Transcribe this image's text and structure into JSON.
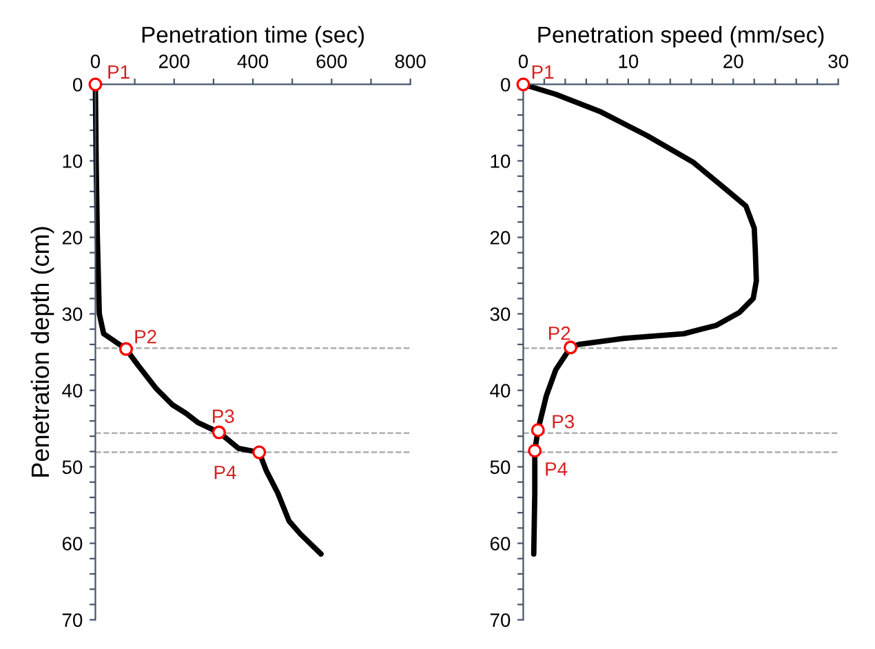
{
  "chart_data": [
    {
      "type": "line",
      "xlabel": "Penetration time (sec)",
      "ylabel": "Penetration depth (cm)",
      "xlim": [
        0,
        800
      ],
      "ylim": [
        70,
        0
      ],
      "xticks": [
        0,
        {
          "value": 100,
          "label": null
        },
        200,
        {
          "value": 300,
          "label": null
        },
        400,
        {
          "value": 500,
          "label": null
        },
        600,
        {
          "value": 700,
          "label": null
        },
        800
      ],
      "yticks": [
        0,
        {
          "value": 2,
          "label": null
        },
        {
          "value": 4,
          "label": null
        },
        {
          "value": 6,
          "label": null
        },
        {
          "value": 8,
          "label": null
        },
        10,
        {
          "value": 12,
          "label": null
        },
        {
          "value": 14,
          "label": null
        },
        {
          "value": 16,
          "label": null
        },
        {
          "value": 18,
          "label": null
        },
        20,
        {
          "value": 22,
          "label": null
        },
        {
          "value": 24,
          "label": null
        },
        {
          "value": 26,
          "label": null
        },
        {
          "value": 28,
          "label": null
        },
        30,
        {
          "value": 32,
          "label": null
        },
        {
          "value": 34,
          "label": null
        },
        {
          "value": 36,
          "label": null
        },
        {
          "value": 38,
          "label": null
        },
        40,
        {
          "value": 42,
          "label": null
        },
        {
          "value": 44,
          "label": null
        },
        {
          "value": 46,
          "label": null
        },
        {
          "value": 48,
          "label": null
        },
        50,
        {
          "value": 52,
          "label": null
        },
        {
          "value": 54,
          "label": null
        },
        {
          "value": 56,
          "label": null
        },
        {
          "value": 58,
          "label": null
        },
        60,
        {
          "value": 62,
          "label": null
        },
        {
          "value": 64,
          "label": null
        },
        {
          "value": 66,
          "label": null
        },
        {
          "value": 68,
          "label": null
        },
        70
      ],
      "grid": false,
      "legend": false,
      "line_style": "solid",
      "series": [
        {
          "color": "#000000",
          "marker": "none",
          "x": [
            0,
            2,
            5,
            10,
            21,
            78,
            108,
            155,
            196,
            230,
            260,
            314,
            364,
            416,
            434,
            463,
            492,
            521,
            573
          ],
          "values": [
            0,
            10,
            20,
            30,
            32.6,
            34.6,
            36.7,
            39.8,
            41.9,
            43,
            44.2,
            45.5,
            47.6,
            48.1,
            50.5,
            53.4,
            57.1,
            58.8,
            61.4
          ]
        },
        {
          "type": "scatter",
          "color": "#ff0000",
          "marker": "circle",
          "x": [
            0,
            78,
            314,
            416
          ],
          "values": [
            0,
            34.6,
            45.5,
            48.1
          ]
        }
      ],
      "ref_lines": [
        {
          "axis": "y",
          "value": 34.5,
          "color": "#a6a6a6",
          "line_style": "dashed"
        },
        {
          "axis": "y",
          "value": 45.6,
          "color": "#a6a6a6",
          "line_style": "dashed"
        },
        {
          "axis": "y",
          "value": 48.1,
          "color": "#a6a6a6",
          "line_style": "dashed"
        }
      ],
      "annotations": [
        {
          "text": "P1",
          "x": 0,
          "y": 0
        },
        {
          "text": "P2",
          "x": 78,
          "y": 34.6
        },
        {
          "text": "P3",
          "x": 314,
          "y": 45.5
        },
        {
          "text": "P4",
          "x": 416,
          "y": 48.1
        }
      ]
    },
    {
      "type": "line",
      "xlabel": "Penetration speed (mm/sec)",
      "xlim": [
        0,
        30
      ],
      "ylim": [
        70,
        0
      ],
      "xticks": [
        0,
        {
          "value": 2,
          "label": null
        },
        {
          "value": 4,
          "label": null
        },
        {
          "value": 6,
          "label": null
        },
        {
          "value": 8,
          "label": null
        },
        10,
        {
          "value": 12,
          "label": null
        },
        {
          "value": 14,
          "label": null
        },
        {
          "value": 16,
          "label": null
        },
        {
          "value": 18,
          "label": null
        },
        20,
        {
          "value": 22,
          "label": null
        },
        {
          "value": 24,
          "label": null
        },
        {
          "value": 26,
          "label": null
        },
        {
          "value": 28,
          "label": null
        },
        30
      ],
      "yticks": [
        0,
        {
          "value": 2,
          "label": null
        },
        {
          "value": 4,
          "label": null
        },
        {
          "value": 6,
          "label": null
        },
        {
          "value": 8,
          "label": null
        },
        10,
        {
          "value": 12,
          "label": null
        },
        {
          "value": 14,
          "label": null
        },
        {
          "value": 16,
          "label": null
        },
        {
          "value": 18,
          "label": null
        },
        20,
        {
          "value": 22,
          "label": null
        },
        {
          "value": 24,
          "label": null
        },
        {
          "value": 26,
          "label": null
        },
        {
          "value": 28,
          "label": null
        },
        30,
        {
          "value": 32,
          "label": null
        },
        {
          "value": 34,
          "label": null
        },
        {
          "value": 36,
          "label": null
        },
        {
          "value": 38,
          "label": null
        },
        40,
        {
          "value": 42,
          "label": null
        },
        {
          "value": 44,
          "label": null
        },
        {
          "value": 46,
          "label": null
        },
        {
          "value": 48,
          "label": null
        },
        50,
        {
          "value": 52,
          "label": null
        },
        {
          "value": 54,
          "label": null
        },
        {
          "value": 56,
          "label": null
        },
        {
          "value": 58,
          "label": null
        },
        60,
        {
          "value": 62,
          "label": null
        },
        {
          "value": 64,
          "label": null
        },
        {
          "value": 66,
          "label": null
        },
        {
          "value": 68,
          "label": null
        },
        70
      ],
      "grid": false,
      "legend": false,
      "line_style": "solid",
      "series": [
        {
          "color": "#000000",
          "marker": "none",
          "x": [
            0,
            3.1,
            7.4,
            11.8,
            16.2,
            19.2,
            21.2,
            22.0,
            22.1,
            22.2,
            21.9,
            20.6,
            18.4,
            15.3,
            9.6,
            5.3,
            4.5,
            3.1,
            2.2,
            1.4,
            1.1,
            1.1,
            1.0
          ],
          "values": [
            0,
            1.3,
            3.6,
            6.7,
            10.2,
            13.6,
            15.9,
            18.8,
            21.7,
            25.7,
            28.0,
            29.8,
            31.5,
            32.6,
            33.2,
            34.0,
            34.4,
            37.3,
            40.7,
            45.2,
            47.9,
            53.4,
            61.4
          ]
        },
        {
          "type": "scatter",
          "color": "#ff0000",
          "marker": "circle",
          "x": [
            0,
            4.5,
            1.4,
            1.1
          ],
          "values": [
            0,
            34.4,
            45.2,
            47.9
          ]
        }
      ],
      "ref_lines": [
        {
          "axis": "y",
          "value": 34.5,
          "color": "#a6a6a6",
          "line_style": "dashed"
        },
        {
          "axis": "y",
          "value": 45.6,
          "color": "#a6a6a6",
          "line_style": "dashed"
        },
        {
          "axis": "y",
          "value": 48.1,
          "color": "#a6a6a6",
          "line_style": "dashed"
        }
      ],
      "annotations": [
        {
          "text": "P1",
          "x": 0,
          "y": 0
        },
        {
          "text": "P2",
          "x": 4.5,
          "y": 34.4
        },
        {
          "text": "P3",
          "x": 1.4,
          "y": 45.2
        },
        {
          "text": "P4",
          "x": 1.1,
          "y": 47.9
        }
      ]
    }
  ]
}
